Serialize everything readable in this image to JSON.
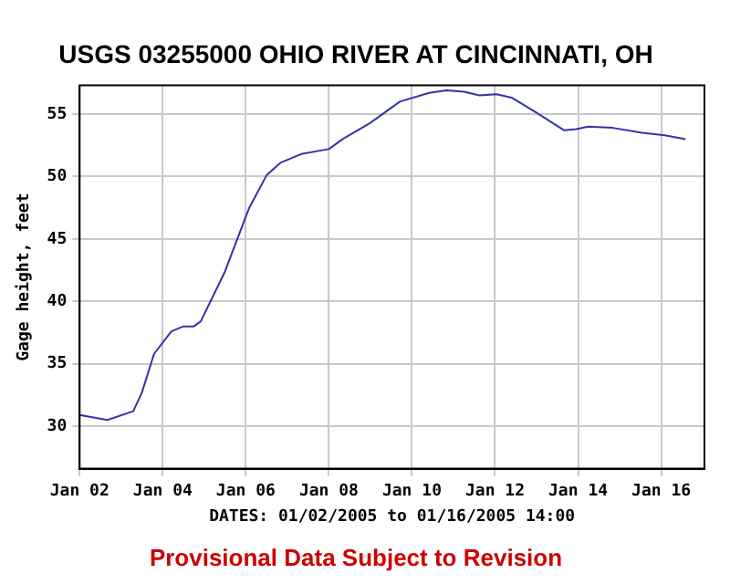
{
  "chart_data": {
    "type": "line",
    "title": "USGS 03255000 OHIO RIVER AT CINCINNATI, OH",
    "xlabel": "DATES: 01/02/2005 to 01/16/2005 14:00",
    "ylabel": "Gage height, feet",
    "annotations": [
      "Provisional Data Subject to Revision"
    ],
    "x": [
      "2005-01-02T00:00",
      "2005-01-02T16:00",
      "2005-01-03T07:00",
      "2005-01-03T12:00",
      "2005-01-03T19:00",
      "2005-01-04T05:00",
      "2005-01-04T12:00",
      "2005-01-04T18:00",
      "2005-01-04T22:00",
      "2005-01-05T12:00",
      "2005-01-05T18:00",
      "2005-01-06T02:00",
      "2005-01-06T12:00",
      "2005-01-06T20:00",
      "2005-01-07T08:00",
      "2005-01-08T00:00",
      "2005-01-08T08:00",
      "2005-01-09T00:00",
      "2005-01-09T17:00",
      "2005-01-10T10:00",
      "2005-01-10T20:00",
      "2005-01-11T06:00",
      "2005-01-11T15:00",
      "2005-01-12T01:00",
      "2005-01-12T10:00",
      "2005-01-12T23:00",
      "2005-01-13T16:00",
      "2005-01-13T23:00",
      "2005-01-14T06:00",
      "2005-01-14T20:00",
      "2005-01-15T13:00",
      "2005-01-16T02:00",
      "2005-01-16T14:00"
    ],
    "series": [
      {
        "color": "#3333aa",
        "values": [
          30.9,
          30.5,
          31.2,
          32.7,
          35.8,
          37.6,
          38.0,
          38.0,
          38.4,
          42.4,
          44.6,
          47.5,
          50.1,
          51.1,
          51.8,
          52.2,
          53.0,
          54.3,
          56.0,
          56.7,
          56.9,
          56.8,
          56.5,
          56.6,
          56.3,
          55.2,
          53.7,
          53.8,
          54.0,
          53.9,
          53.5,
          53.3,
          53.0
        ]
      }
    ],
    "xlim": [
      "2005-01-02",
      "2005-01-17T01:00"
    ],
    "xticks": [
      {
        "value": "2005-01-02",
        "label": "Jan 02"
      },
      {
        "value": "2005-01-04",
        "label": "Jan 04"
      },
      {
        "value": "2005-01-06",
        "label": "Jan 06"
      },
      {
        "value": "2005-01-08",
        "label": "Jan 08"
      },
      {
        "value": "2005-01-10",
        "label": "Jan 10"
      },
      {
        "value": "2005-01-12",
        "label": "Jan 12"
      },
      {
        "value": "2005-01-14",
        "label": "Jan 14"
      },
      {
        "value": "2005-01-16",
        "label": "Jan 16"
      }
    ],
    "ylim": [
      26.6,
      57.3
    ],
    "yticks": [
      30,
      35,
      40,
      45,
      50,
      55
    ],
    "grid": true,
    "marker": "none",
    "line_style": "solid"
  }
}
